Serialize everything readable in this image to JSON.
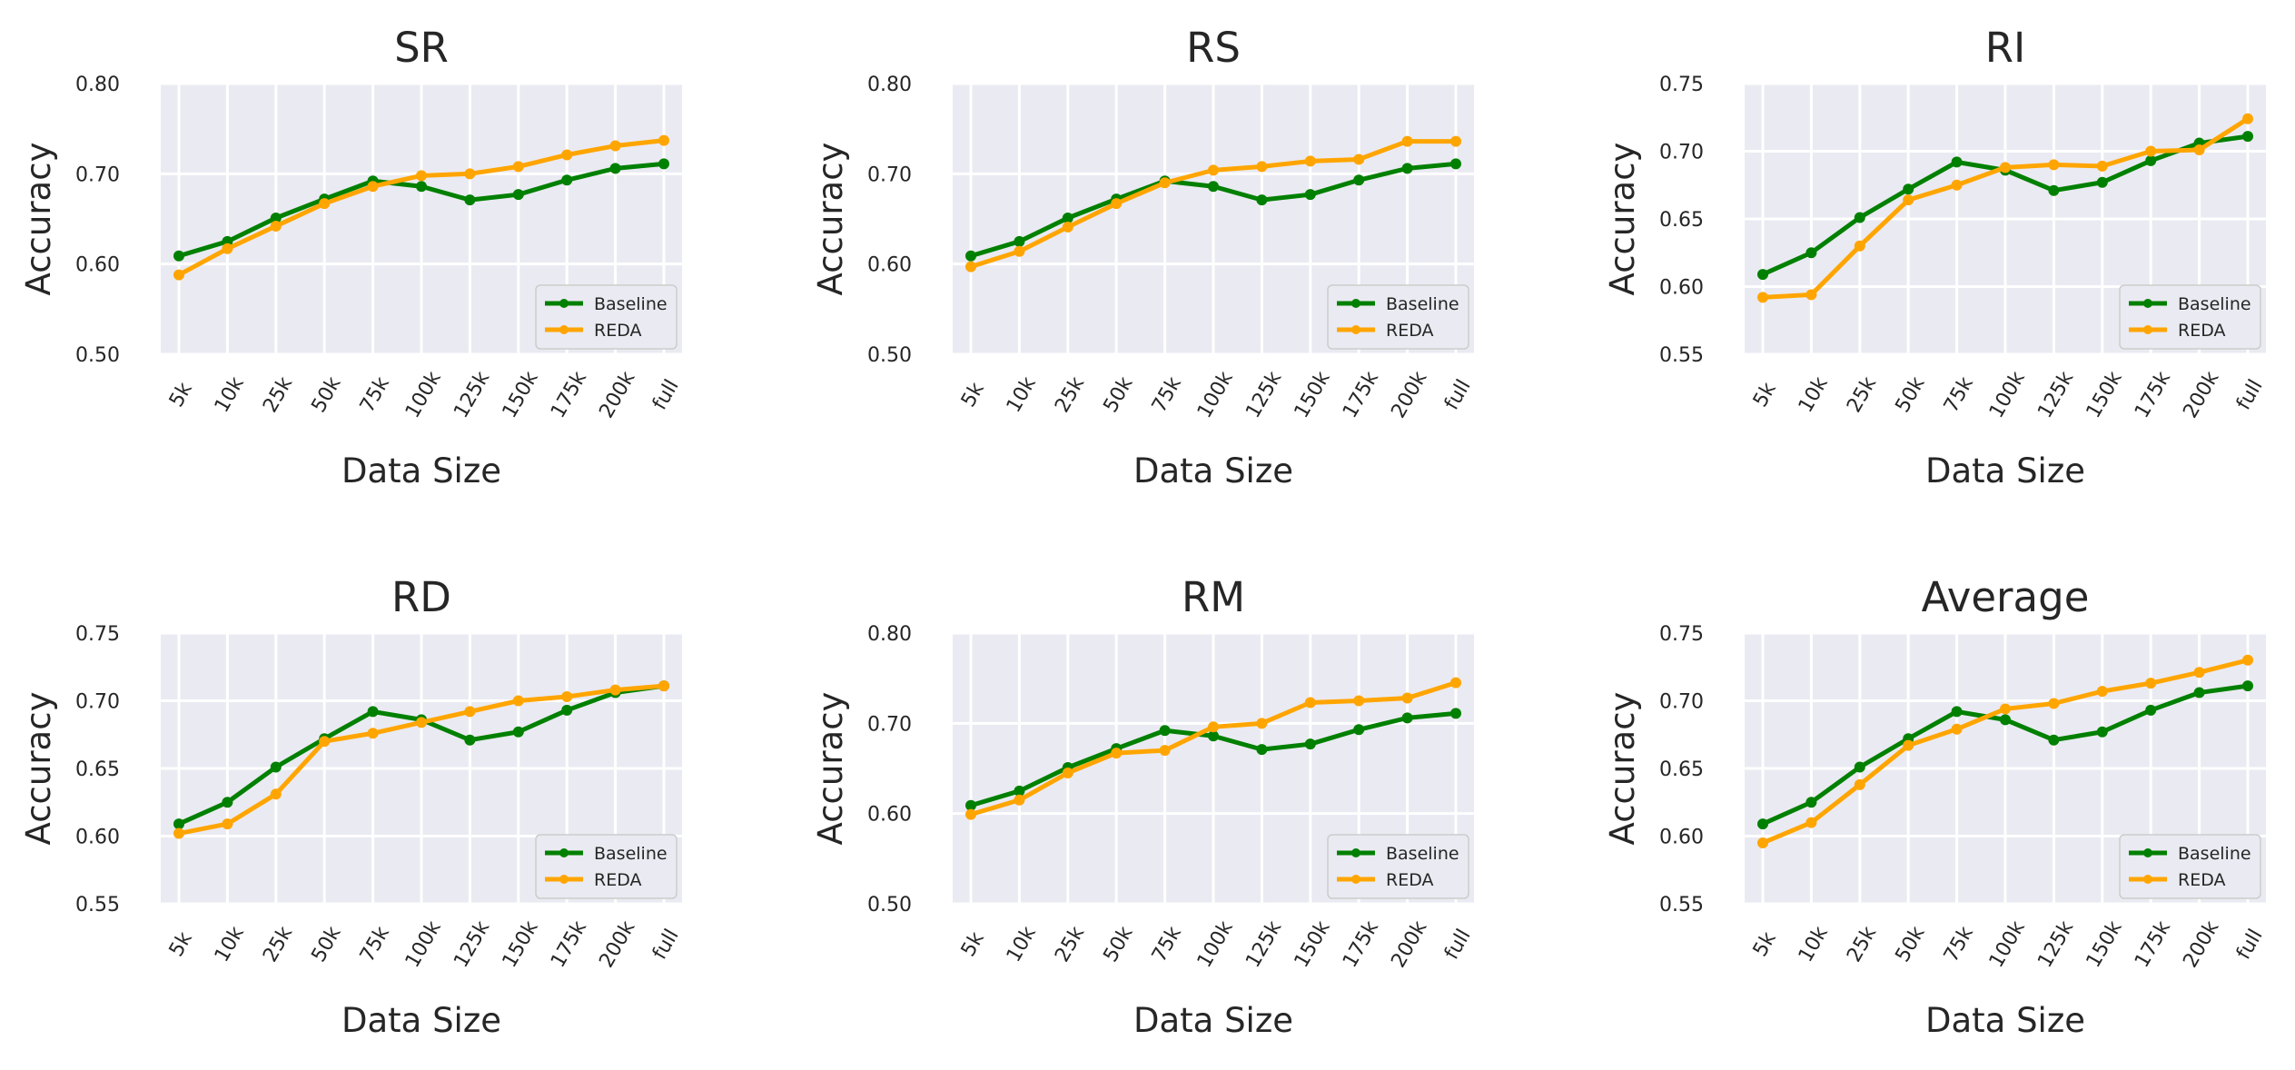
{
  "chart_data": [
    {
      "type": "line",
      "title": "SR",
      "xlabel": "Data Size",
      "ylabel": "Accuracy",
      "categories": [
        "5k",
        "10k",
        "25k",
        "50k",
        "75k",
        "100k",
        "125k",
        "150k",
        "175k",
        "200k",
        "full"
      ],
      "ylim": [
        0.5,
        0.8
      ],
      "yticks": [
        "0.50",
        "0.60",
        "0.70",
        "0.80"
      ],
      "legend_position": "lower-right",
      "series": [
        {
          "name": "Baseline",
          "color": "#008000",
          "values": [
            0.609,
            0.625,
            0.651,
            0.672,
            0.692,
            0.686,
            0.671,
            0.677,
            0.693,
            0.706,
            0.711
          ]
        },
        {
          "name": "REDA",
          "color": "#ffa500",
          "values": [
            0.588,
            0.617,
            0.642,
            0.667,
            0.686,
            0.698,
            0.7,
            0.708,
            0.721,
            0.731,
            0.737
          ]
        }
      ]
    },
    {
      "type": "line",
      "title": "RS",
      "xlabel": "Data Size",
      "ylabel": "Accuracy",
      "categories": [
        "5k",
        "10k",
        "25k",
        "50k",
        "75k",
        "100k",
        "125k",
        "150k",
        "175k",
        "200k",
        "full"
      ],
      "ylim": [
        0.5,
        0.8
      ],
      "yticks": [
        "0.50",
        "0.60",
        "0.70",
        "0.80"
      ],
      "legend_position": "lower-right",
      "series": [
        {
          "name": "Baseline",
          "color": "#008000",
          "values": [
            0.609,
            0.625,
            0.651,
            0.672,
            0.692,
            0.686,
            0.671,
            0.677,
            0.693,
            0.706,
            0.711
          ]
        },
        {
          "name": "REDA",
          "color": "#ffa500",
          "values": [
            0.597,
            0.614,
            0.641,
            0.667,
            0.69,
            0.704,
            0.708,
            0.714,
            0.716,
            0.736,
            0.736
          ]
        }
      ]
    },
    {
      "type": "line",
      "title": "RI",
      "xlabel": "Data Size",
      "ylabel": "Accuracy",
      "categories": [
        "5k",
        "10k",
        "25k",
        "50k",
        "75k",
        "100k",
        "125k",
        "150k",
        "175k",
        "200k",
        "full"
      ],
      "ylim": [
        0.55,
        0.75
      ],
      "yticks": [
        "0.55",
        "0.60",
        "0.65",
        "0.70",
        "0.75"
      ],
      "legend_position": "lower-right",
      "series": [
        {
          "name": "Baseline",
          "color": "#008000",
          "values": [
            0.609,
            0.625,
            0.651,
            0.672,
            0.692,
            0.686,
            0.671,
            0.677,
            0.693,
            0.706,
            0.711
          ]
        },
        {
          "name": "REDA",
          "color": "#ffa500",
          "values": [
            0.592,
            0.594,
            0.63,
            0.664,
            0.675,
            0.688,
            0.69,
            0.689,
            0.7,
            0.701,
            0.724
          ]
        }
      ]
    },
    {
      "type": "line",
      "title": "RD",
      "xlabel": "Data Size",
      "ylabel": "Accuracy",
      "categories": [
        "5k",
        "10k",
        "25k",
        "50k",
        "75k",
        "100k",
        "125k",
        "150k",
        "175k",
        "200k",
        "full"
      ],
      "ylim": [
        0.55,
        0.75
      ],
      "yticks": [
        "0.55",
        "0.60",
        "0.65",
        "0.70",
        "0.75"
      ],
      "legend_position": "lower-right",
      "series": [
        {
          "name": "Baseline",
          "color": "#008000",
          "values": [
            0.609,
            0.625,
            0.651,
            0.672,
            0.692,
            0.686,
            0.671,
            0.677,
            0.693,
            0.706,
            0.711
          ]
        },
        {
          "name": "REDA",
          "color": "#ffa500",
          "values": [
            0.602,
            0.609,
            0.631,
            0.67,
            0.676,
            0.684,
            0.692,
            0.7,
            0.703,
            0.708,
            0.711
          ]
        }
      ]
    },
    {
      "type": "line",
      "title": "RM",
      "xlabel": "Data Size",
      "ylabel": "Accuracy",
      "categories": [
        "5k",
        "10k",
        "25k",
        "50k",
        "75k",
        "100k",
        "125k",
        "150k",
        "175k",
        "200k",
        "full"
      ],
      "ylim": [
        0.5,
        0.8
      ],
      "yticks": [
        "0.50",
        "0.60",
        "0.70",
        "0.80"
      ],
      "legend_position": "lower-right",
      "series": [
        {
          "name": "Baseline",
          "color": "#008000",
          "values": [
            0.609,
            0.625,
            0.651,
            0.672,
            0.692,
            0.686,
            0.671,
            0.677,
            0.693,
            0.706,
            0.711
          ]
        },
        {
          "name": "REDA",
          "color": "#ffa500",
          "values": [
            0.599,
            0.615,
            0.645,
            0.667,
            0.67,
            0.696,
            0.7,
            0.723,
            0.725,
            0.728,
            0.745
          ]
        }
      ]
    },
    {
      "type": "line",
      "title": "Average",
      "xlabel": "Data Size",
      "ylabel": "Accuracy",
      "categories": [
        "5k",
        "10k",
        "25k",
        "50k",
        "75k",
        "100k",
        "125k",
        "150k",
        "175k",
        "200k",
        "full"
      ],
      "ylim": [
        0.55,
        0.75
      ],
      "yticks": [
        "0.55",
        "0.60",
        "0.65",
        "0.70",
        "0.75"
      ],
      "legend_position": "lower-right",
      "series": [
        {
          "name": "Baseline",
          "color": "#008000",
          "values": [
            0.609,
            0.625,
            0.651,
            0.672,
            0.692,
            0.686,
            0.671,
            0.677,
            0.693,
            0.706,
            0.711
          ]
        },
        {
          "name": "REDA",
          "color": "#ffa500",
          "values": [
            0.595,
            0.61,
            0.638,
            0.667,
            0.679,
            0.694,
            0.698,
            0.707,
            0.713,
            0.721,
            0.73
          ]
        }
      ]
    }
  ]
}
